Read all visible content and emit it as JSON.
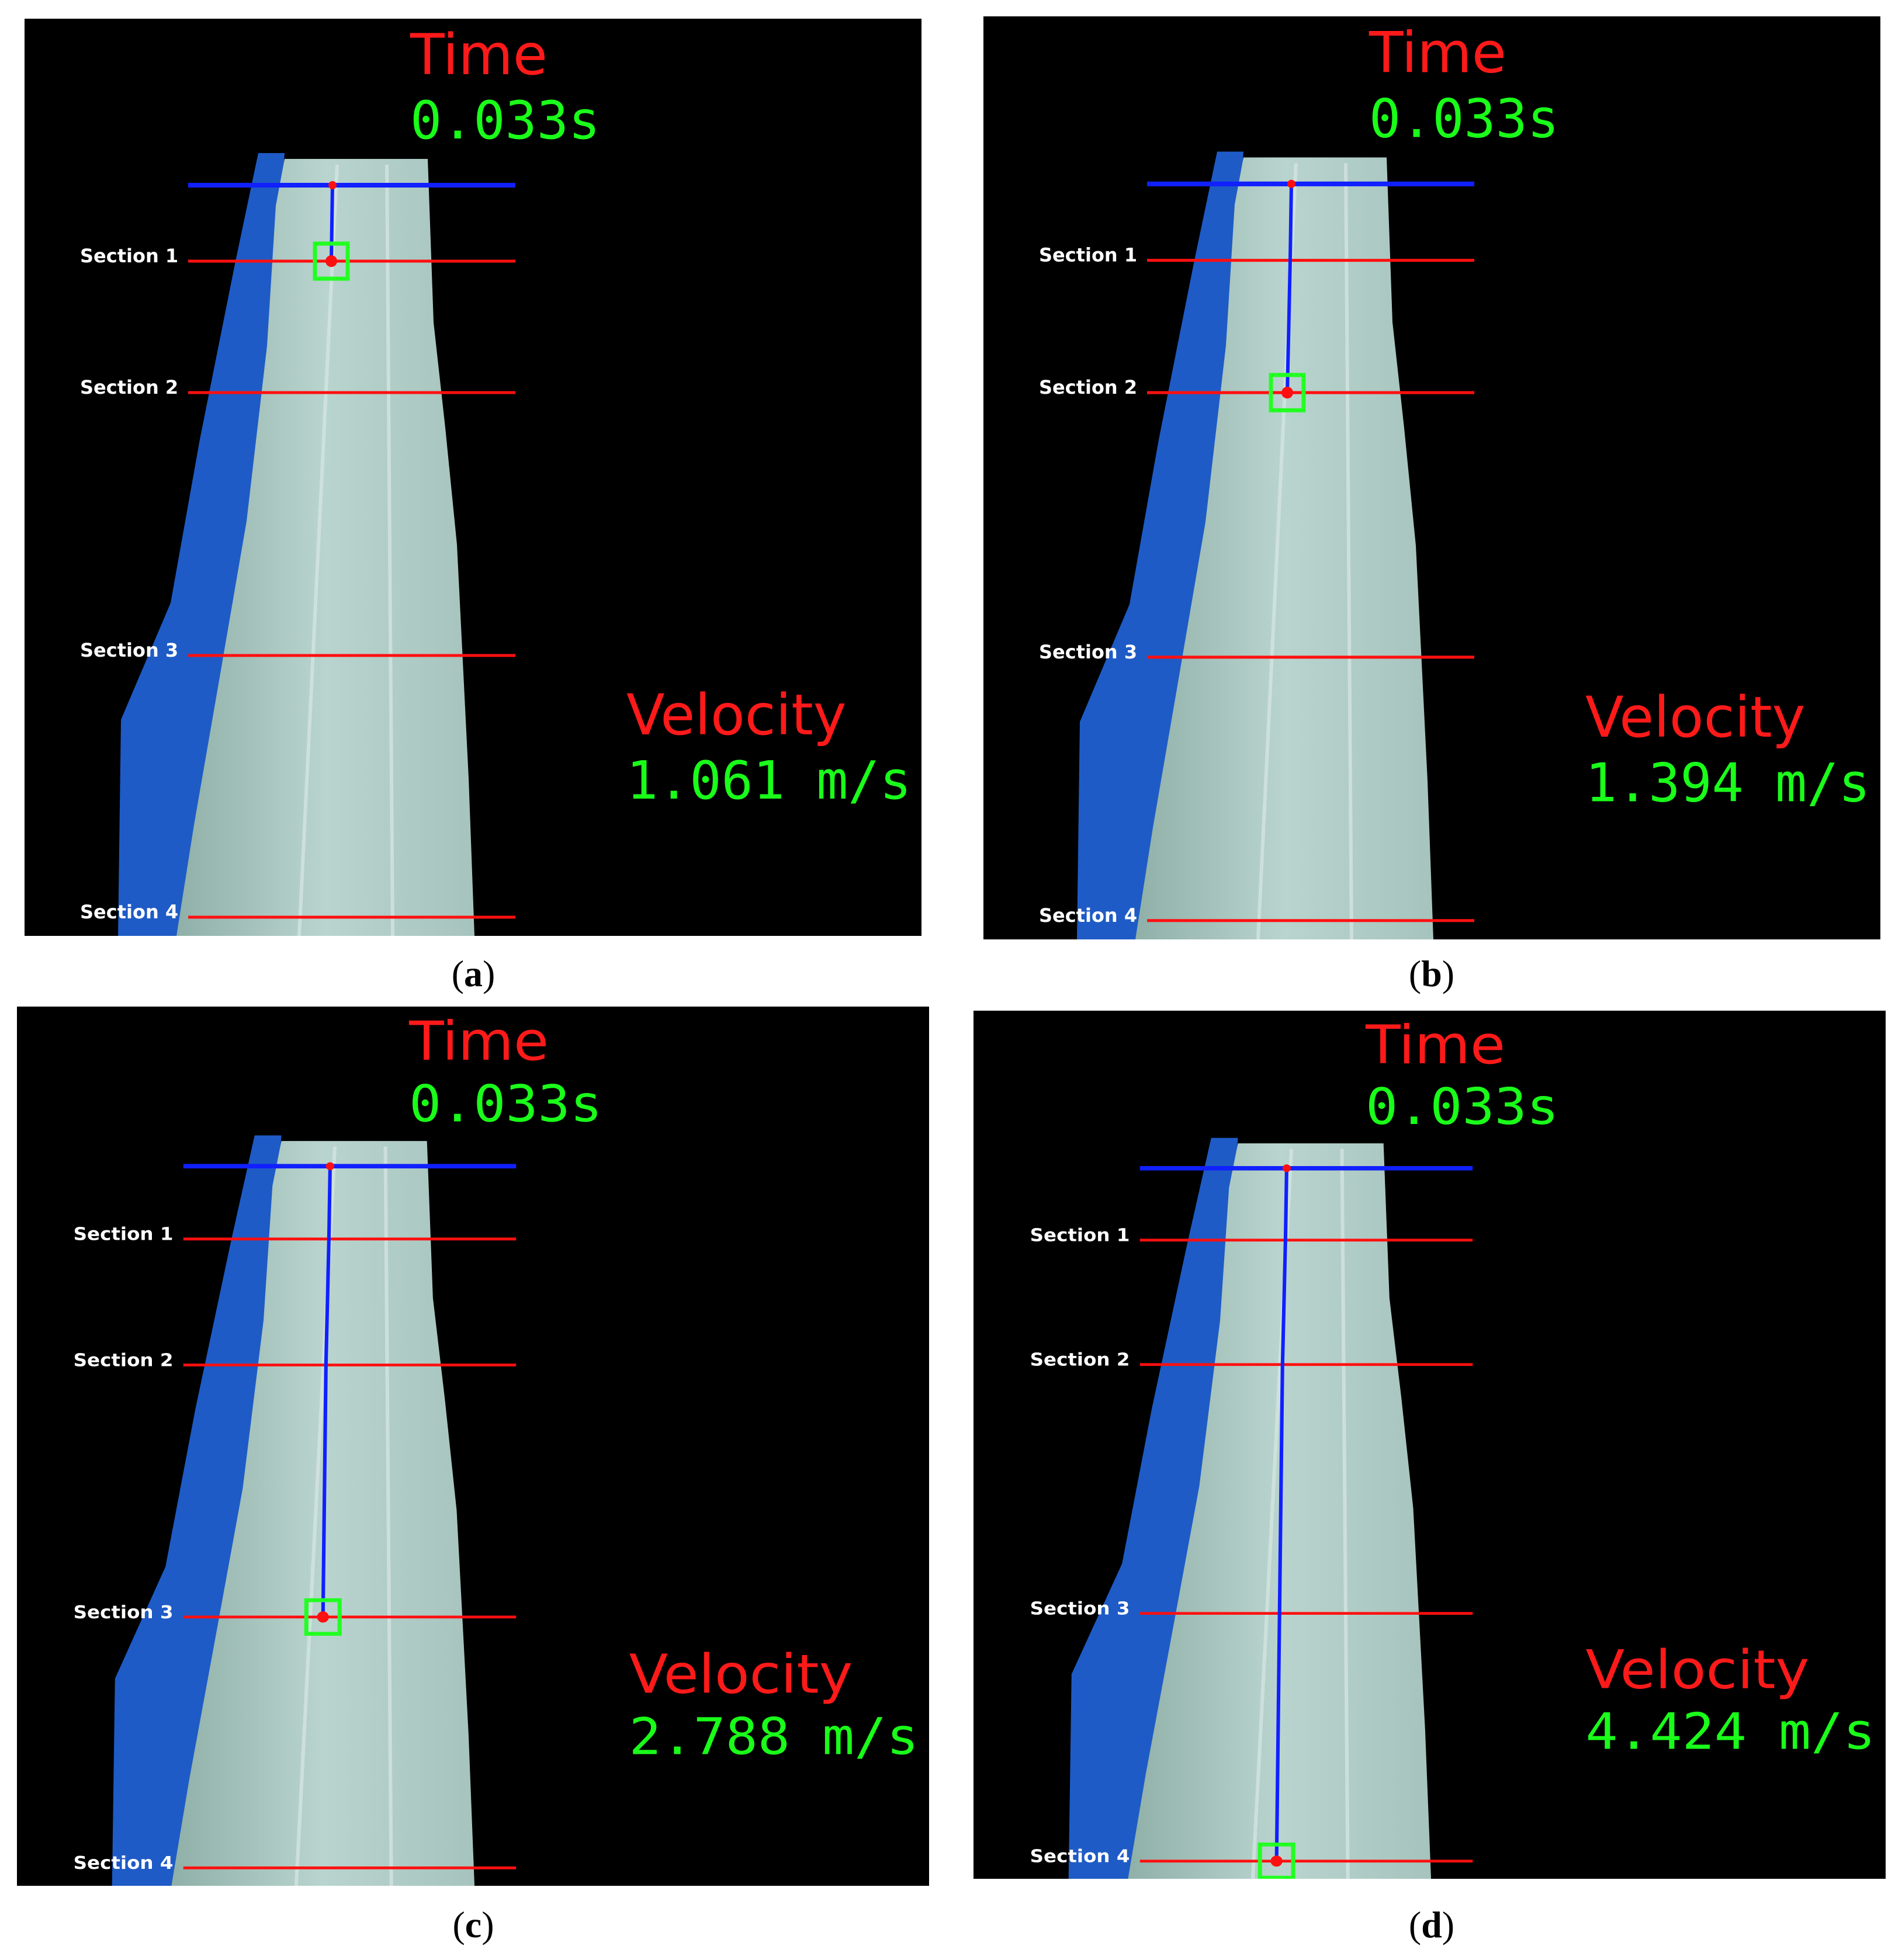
{
  "colors": {
    "time_label": "#ff1a1a",
    "value_text": "#1aff1a",
    "reference_line": "#1020ff",
    "section_line": "#ff1010",
    "track_line": "#1020ff",
    "box": "#22ff22",
    "chute_wall": "#1e5bc6",
    "water": "#b9d4ce"
  },
  "panels": [
    {
      "id": "a",
      "caption_letter": "a",
      "time_label": "Time",
      "time_value": "0.033s",
      "velocity_label": "Velocity",
      "velocity_value": "1.061 m/s",
      "section_labels": [
        "Section 1",
        "Section 2",
        "Section 3",
        "Section 4"
      ],
      "tracked_section_progress": 1
    },
    {
      "id": "b",
      "caption_letter": "b",
      "time_label": "Time",
      "time_value": "0.033s",
      "velocity_label": "Velocity",
      "velocity_value": "1.394 m/s",
      "section_labels": [
        "Section 1",
        "Section 2",
        "Section 3",
        "Section 4"
      ],
      "tracked_section_progress": 2
    },
    {
      "id": "c",
      "caption_letter": "c",
      "time_label": "Time",
      "time_value": "0.033s",
      "velocity_label": "Velocity",
      "velocity_value": "2.788 m/s",
      "section_labels": [
        "Section 1",
        "Section 2",
        "Section 3",
        "Section 4"
      ],
      "tracked_section_progress": 3
    },
    {
      "id": "d",
      "caption_letter": "d",
      "time_label": "Time",
      "time_value": "0.033s",
      "velocity_label": "Velocity",
      "velocity_value": "4.424 m/s",
      "section_labels": [
        "Section 1",
        "Section 2",
        "Section 3",
        "Section 4"
      ],
      "tracked_section_progress": 4
    }
  ]
}
